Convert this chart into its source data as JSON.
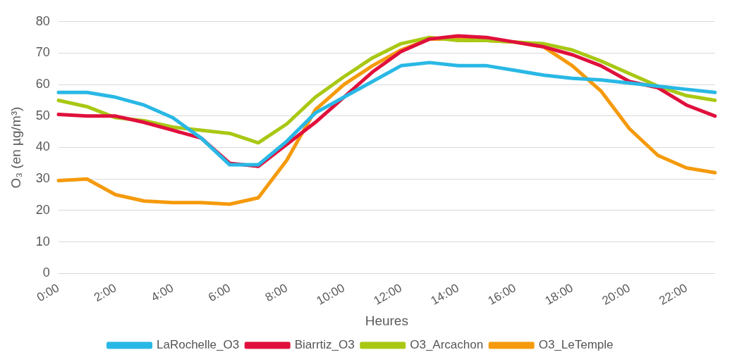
{
  "chart_data": {
    "type": "line",
    "xlabel": "Heures",
    "ylabel": "O₃ (en µg/m³)",
    "categories": [
      "0:00",
      null,
      "2:00",
      null,
      "4:00",
      null,
      "6:00",
      null,
      "8:00",
      null,
      "10:00",
      null,
      "12:00",
      null,
      "14:00",
      null,
      "16:00",
      null,
      "18:00",
      null,
      "20:00",
      null,
      "22:00",
      null
    ],
    "series": [
      {
        "name": "LaRochelle_O3",
        "color": "#29b8e5",
        "values": [
          57.5,
          57.5,
          56,
          53.5,
          49.5,
          43,
          34.5,
          34.5,
          42,
          51,
          56,
          61,
          66,
          67,
          66,
          66,
          64.5,
          63,
          62,
          61.5,
          60.5,
          59.5,
          58.5,
          57.5
        ]
      },
      {
        "name": "Biarrtiz_O3",
        "color": "#e0103c",
        "values": [
          50.5,
          50,
          50,
          48,
          45.5,
          43,
          35,
          34,
          41,
          48,
          56,
          64,
          70.5,
          74.5,
          75.5,
          75,
          73.5,
          72,
          69.5,
          66,
          61,
          59,
          53.5,
          50
        ]
      },
      {
        "name": "O3_Arcachon",
        "color": "#a8c814",
        "values": [
          55,
          53,
          49.5,
          48.5,
          46.5,
          45.5,
          44.5,
          41.5,
          47.5,
          56,
          62.5,
          68.5,
          73,
          75,
          74,
          74,
          73.5,
          73,
          71,
          67.5,
          63.5,
          59.5,
          56.5,
          55
        ]
      },
      {
        "name": "O3_LeTemple",
        "color": "#f59a0c",
        "values": [
          29.5,
          30,
          25,
          23,
          22.5,
          22.5,
          22,
          24,
          36,
          52,
          60,
          66,
          71,
          74.5,
          74.5,
          74,
          73.5,
          72,
          66,
          58,
          46,
          37.5,
          33.5,
          32
        ]
      }
    ],
    "ylim": [
      0,
      80
    ],
    "yticks": [
      0,
      10,
      20,
      30,
      40,
      50,
      60,
      70,
      80
    ],
    "grid": "y",
    "legend": "bottom",
    "marker": "none",
    "line_style": "solid"
  }
}
